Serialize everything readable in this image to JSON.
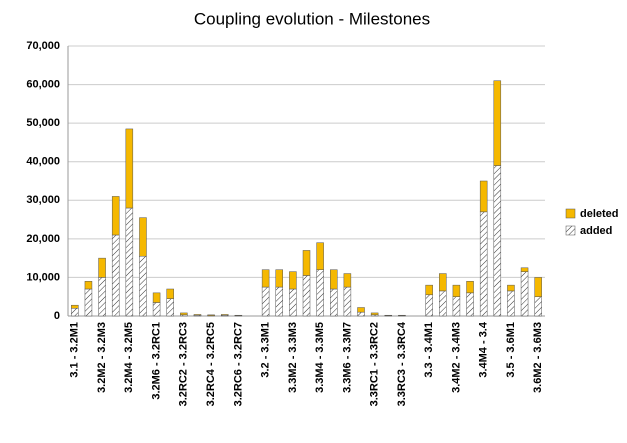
{
  "chart_data": {
    "type": "stacked_bar",
    "title": "Coupling evolution - Milestones",
    "categories": [
      "3.1 - 3.2M1",
      null,
      "3.2M2 - 3.2M3",
      null,
      "3.2M4 - 3.2M5",
      null,
      "3.2M6 - 3.2RC1",
      null,
      "3.2RC2 - 3.2RC3",
      null,
      "3.2RC4 - 3.2RC5",
      null,
      "3.2RC6 - 3.2RC7",
      null,
      "3.2 - 3.3M1",
      null,
      "3.3M2 - 3.3M3",
      null,
      "3.3M4 - 3.3M5",
      null,
      "3.3M6 - 3.3M7",
      null,
      "3.3RC1 - 3.3RC2",
      null,
      "3.3RC3 - 3.3RC4",
      null,
      "3.3 - 3.4M1",
      null,
      "3.4M2 - 3.4M3",
      null,
      "3.4M4 - 3.4",
      null,
      "3.5 - 3.6M1",
      null,
      "3.6M2 - 3.6M3"
    ],
    "series": [
      {
        "name": "added",
        "color": "#ffffff",
        "values": [
          2000,
          7000,
          10000,
          21000,
          28000,
          15500,
          3500,
          4500,
          300,
          200,
          100,
          200,
          100,
          0,
          7500,
          7500,
          7000,
          10500,
          12000,
          7000,
          7500,
          1000,
          300,
          100,
          100,
          0,
          5500,
          6500,
          5000,
          6000,
          27000,
          39000,
          6500,
          11500,
          5000
        ]
      },
      {
        "name": "deleted",
        "color": "#f5b800",
        "values": [
          800,
          2000,
          5000,
          10000,
          20500,
          10000,
          2500,
          2500,
          500,
          200,
          200,
          200,
          100,
          0,
          4500,
          4500,
          4500,
          6500,
          7000,
          5000,
          3500,
          1200,
          500,
          100,
          100,
          0,
          2500,
          4500,
          3000,
          3000,
          8000,
          22000,
          1500,
          1000,
          5000
        ]
      }
    ],
    "ylim": [
      0,
      70000
    ],
    "yticks": [
      0,
      {
        "value": 10000,
        "label": "10,000"
      },
      {
        "value": 20000,
        "label": "20,000"
      },
      {
        "value": 30000,
        "label": "30,000"
      },
      {
        "value": 40000,
        "label": "40,000"
      },
      {
        "value": 50000,
        "label": "50,000"
      },
      {
        "value": 60000,
        "label": "60,000"
      },
      {
        "value": 70000,
        "label": "70,000"
      }
    ],
    "grid": true,
    "legend": "right"
  }
}
